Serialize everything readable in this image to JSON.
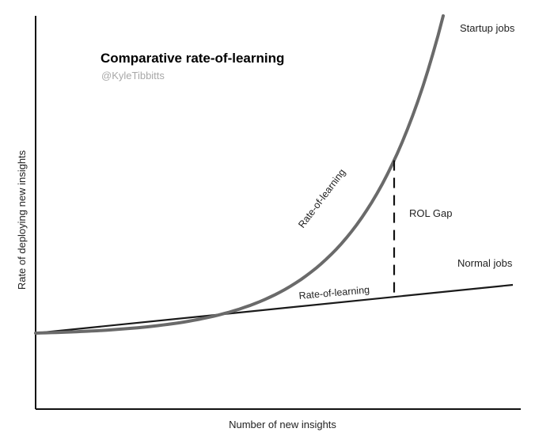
{
  "chart_data": {
    "type": "line",
    "title": "Comparative rate-of-learning",
    "subtitle": "@KyleTibbitts",
    "xlabel": "Number of new insights",
    "ylabel": "Rate of deploying new insights",
    "grid": false,
    "series": [
      {
        "name": "Startup jobs",
        "shape": "exponential",
        "curve_label": "Rate-of-learning",
        "color": "#6a6a6a"
      },
      {
        "name": "Normal jobs",
        "shape": "linear",
        "curve_label": "Rate-of-learning",
        "color": "#1a1a1a"
      }
    ],
    "annotations": [
      {
        "text": "ROL Gap",
        "style": "dashed-vertical"
      }
    ]
  }
}
